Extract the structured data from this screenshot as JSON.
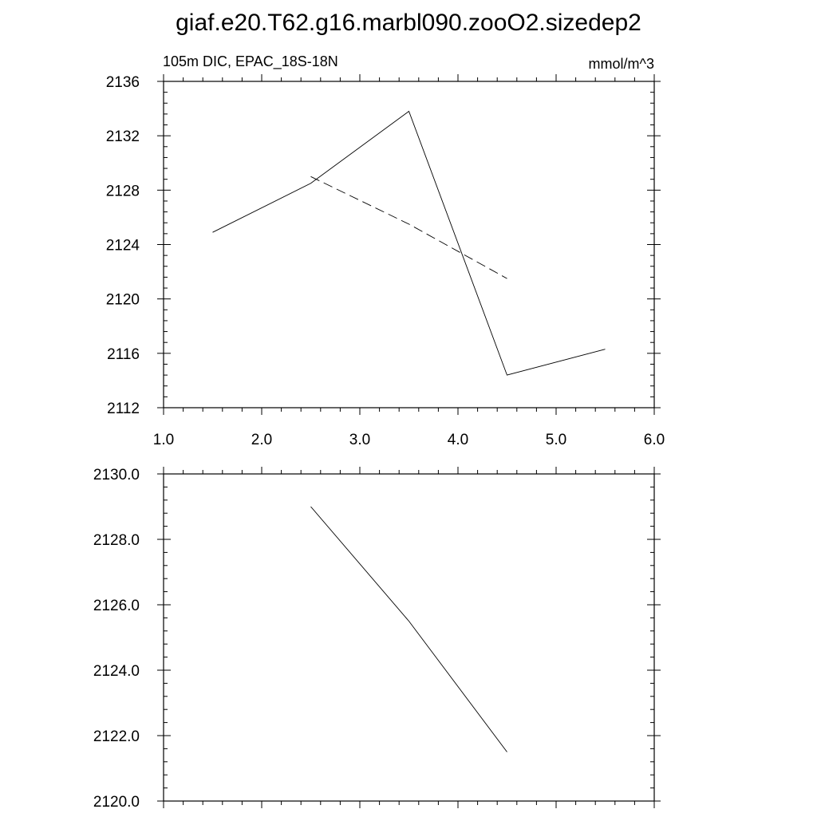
{
  "title": "giaf.e20.T62.g16.marbl090.zooO2.sizedep2",
  "chart_data": [
    {
      "type": "line",
      "left_string": "105m DIC, EPAC_18S-18N",
      "right_string": "mmol/m^3",
      "xlim": [
        1.0,
        6.0
      ],
      "ylim": [
        2112,
        2136
      ],
      "x_tick_labels": [
        "1.0",
        "2.0",
        "3.0",
        "4.0",
        "5.0",
        "6.0"
      ],
      "y_tick_labels": [
        "2112",
        "2116",
        "2120",
        "2124",
        "2128",
        "2132",
        "2136"
      ],
      "series": [
        {
          "style": "solid",
          "x": [
            1.5,
            2.5,
            3.5,
            4.5,
            5.5
          ],
          "y": [
            2124.9,
            2128.5,
            2133.8,
            2114.4,
            2116.3
          ]
        },
        {
          "style": "dashed",
          "x": [
            2.5,
            3.5,
            4.5
          ],
          "y": [
            2129.0,
            2125.5,
            2121.5
          ]
        }
      ]
    },
    {
      "type": "line",
      "xlim": [
        1.0,
        6.0
      ],
      "ylim": [
        2120.0,
        2130.0
      ],
      "y_tick_labels": [
        "2120.0",
        "2122.0",
        "2124.0",
        "2126.0",
        "2128.0",
        "2130.0"
      ],
      "series": [
        {
          "style": "solid",
          "x": [
            2.5,
            3.5,
            4.5
          ],
          "y": [
            2129.0,
            2125.5,
            2121.5
          ]
        }
      ]
    }
  ]
}
